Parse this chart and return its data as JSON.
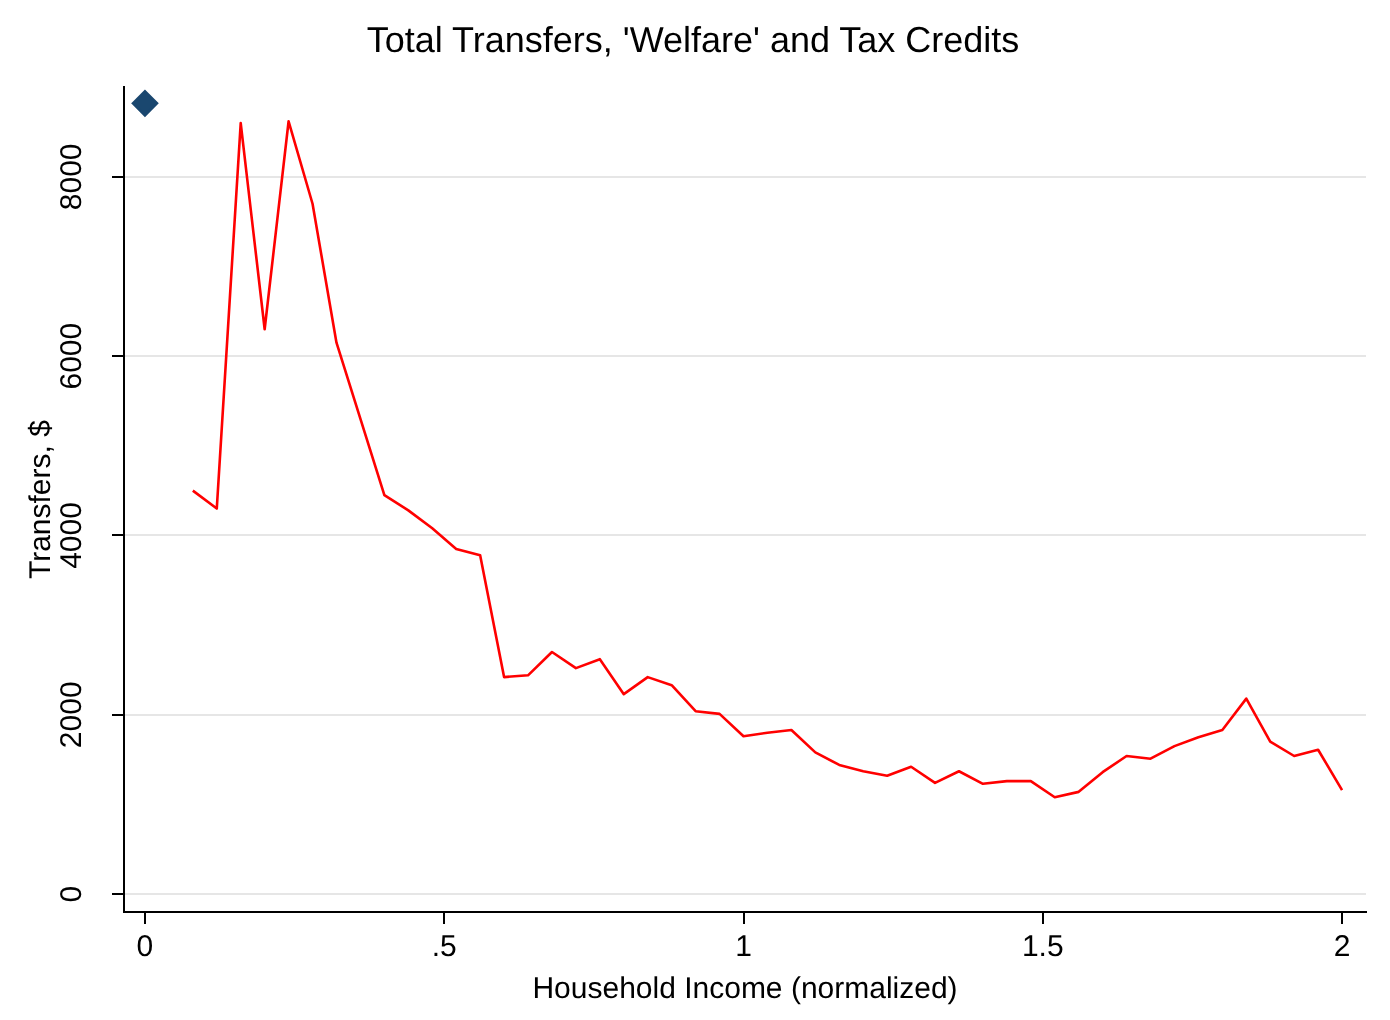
{
  "chart_data": {
    "type": "line",
    "title": "Total Transfers, 'Welfare' and Tax Credits",
    "xlabel": "Household Income (normalized)",
    "ylabel": "Transfers, $",
    "xlim": [
      -0.035,
      2.04
    ],
    "ylim": [
      -200,
      9000
    ],
    "xticks": [
      0,
      {
        "value": 0.5,
        "label": ".5"
      },
      1,
      1.5,
      2
    ],
    "yticks": [
      0,
      2000,
      4000,
      6000,
      8000
    ],
    "grid": "y",
    "legend": false,
    "series": [
      {
        "type": "scatter",
        "marker": "diamond",
        "color": "#1a476f",
        "x": [
          0
        ],
        "values": [
          8820
        ]
      },
      {
        "marker": "none",
        "color": "#ff0000",
        "x": [
          0.08,
          0.12,
          0.16,
          0.2,
          0.24,
          0.28,
          0.32,
          0.36,
          0.4,
          0.44,
          0.48,
          0.52,
          0.56,
          0.6,
          0.64,
          0.68,
          0.72,
          0.76,
          0.8,
          0.84,
          0.88,
          0.92,
          0.96,
          1,
          1.04,
          1.08,
          1.12,
          1.16,
          1.2,
          1.24,
          1.28,
          1.32,
          1.36,
          1.4,
          1.44,
          1.48,
          1.52,
          1.56,
          1.6,
          1.64,
          1.68,
          1.72,
          1.76,
          1.8,
          1.84,
          1.88,
          1.92,
          1.96,
          2
        ],
        "values": [
          4500,
          4300,
          8600,
          6300,
          8620,
          7700,
          6150,
          5300,
          4450,
          4280,
          4080,
          3850,
          3780,
          2420,
          2440,
          2700,
          2520,
          2620,
          2230,
          2420,
          2330,
          2040,
          2010,
          1760,
          1800,
          1830,
          1580,
          1440,
          1370,
          1320,
          1420,
          1240,
          1370,
          1230,
          1260,
          1260,
          1080,
          1140,
          1360,
          1540,
          1510,
          1650,
          1750,
          1830,
          2180,
          1700,
          1540,
          1610,
          1160
        ]
      }
    ]
  }
}
